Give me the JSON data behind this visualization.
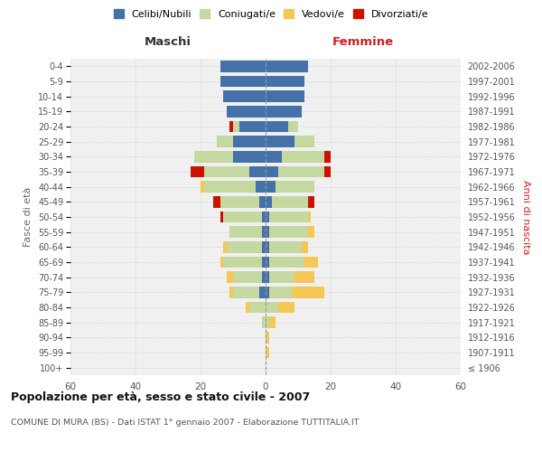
{
  "age_groups": [
    "100+",
    "95-99",
    "90-94",
    "85-89",
    "80-84",
    "75-79",
    "70-74",
    "65-69",
    "60-64",
    "55-59",
    "50-54",
    "45-49",
    "40-44",
    "35-39",
    "30-34",
    "25-29",
    "20-24",
    "15-19",
    "10-14",
    "5-9",
    "0-4"
  ],
  "birth_years": [
    "≤ 1906",
    "1907-1911",
    "1912-1916",
    "1917-1921",
    "1922-1926",
    "1927-1931",
    "1932-1936",
    "1937-1941",
    "1942-1946",
    "1947-1951",
    "1952-1956",
    "1957-1961",
    "1962-1966",
    "1967-1971",
    "1972-1976",
    "1977-1981",
    "1982-1986",
    "1987-1991",
    "1992-1996",
    "1997-2001",
    "2002-2006"
  ],
  "males": {
    "celibi": [
      0,
      0,
      0,
      0,
      0,
      2,
      1,
      1,
      1,
      1,
      1,
      2,
      3,
      5,
      10,
      10,
      8,
      12,
      13,
      14,
      14
    ],
    "coniugati": [
      0,
      0,
      0,
      1,
      5,
      8,
      9,
      12,
      11,
      10,
      12,
      12,
      16,
      14,
      12,
      5,
      2,
      0,
      0,
      0,
      0
    ],
    "vedovi": [
      0,
      0,
      0,
      0,
      1,
      1,
      2,
      1,
      1,
      0,
      0,
      0,
      1,
      0,
      0,
      0,
      0,
      0,
      0,
      0,
      0
    ],
    "divorziati": [
      0,
      0,
      0,
      0,
      0,
      0,
      0,
      0,
      0,
      0,
      1,
      2,
      0,
      4,
      0,
      0,
      1,
      0,
      0,
      0,
      0
    ]
  },
  "females": {
    "nubili": [
      0,
      0,
      0,
      0,
      0,
      1,
      1,
      1,
      1,
      1,
      1,
      2,
      3,
      4,
      5,
      9,
      7,
      11,
      12,
      12,
      13
    ],
    "coniugate": [
      0,
      0,
      0,
      1,
      4,
      7,
      8,
      11,
      10,
      12,
      12,
      11,
      12,
      14,
      13,
      6,
      3,
      0,
      0,
      0,
      0
    ],
    "vedove": [
      0,
      1,
      1,
      2,
      5,
      10,
      6,
      4,
      2,
      2,
      1,
      0,
      0,
      0,
      0,
      0,
      0,
      0,
      0,
      0,
      0
    ],
    "divorziate": [
      0,
      0,
      0,
      0,
      0,
      0,
      0,
      0,
      0,
      0,
      0,
      2,
      0,
      2,
      2,
      0,
      0,
      0,
      0,
      0,
      0
    ]
  },
  "colors": {
    "celibi": "#4472a8",
    "coniugati": "#c5d8a0",
    "vedovi": "#f5c855",
    "divorziati": "#cc1100"
  },
  "xlim": 60,
  "title": "Popolazione per età, sesso e stato civile - 2007",
  "subtitle": "COMUNE DI MURA (BS) - Dati ISTAT 1° gennaio 2007 - Elaborazione TUTTITALIA.IT",
  "xlabel_left": "Maschi",
  "xlabel_right": "Femmine",
  "ylabel_left": "Fasce di età",
  "ylabel_right": "Anni di nascita",
  "bg_color": "#ffffff",
  "plot_bg": "#f0f0f0",
  "grid_color": "#cccccc"
}
